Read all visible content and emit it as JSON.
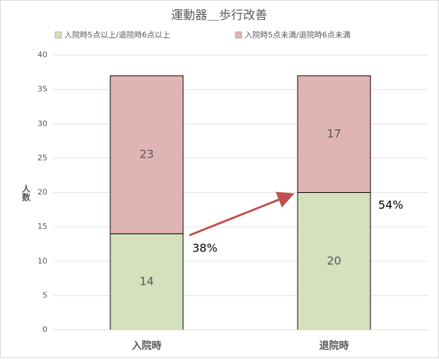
{
  "chart_data": {
    "type": "stacked_bar",
    "title": "運動器＿歩行改善",
    "y_label": "人数",
    "categories": [
      "入院時",
      "退院時"
    ],
    "series": [
      {
        "name": "入院時5点以上/退院時6点以上",
        "color": "#d5e0bc",
        "values": [
          14,
          20
        ]
      },
      {
        "name": "入院時5点未満/退院時6点未満",
        "color": "#e0b4b4",
        "values": [
          23,
          17
        ]
      }
    ],
    "annotations": [
      "38%",
      "54%"
    ],
    "ylim": [
      0,
      40
    ],
    "yticks": [
      0,
      5,
      10,
      15,
      20,
      25,
      30,
      35,
      40
    ],
    "grid": true,
    "legend": "top"
  }
}
